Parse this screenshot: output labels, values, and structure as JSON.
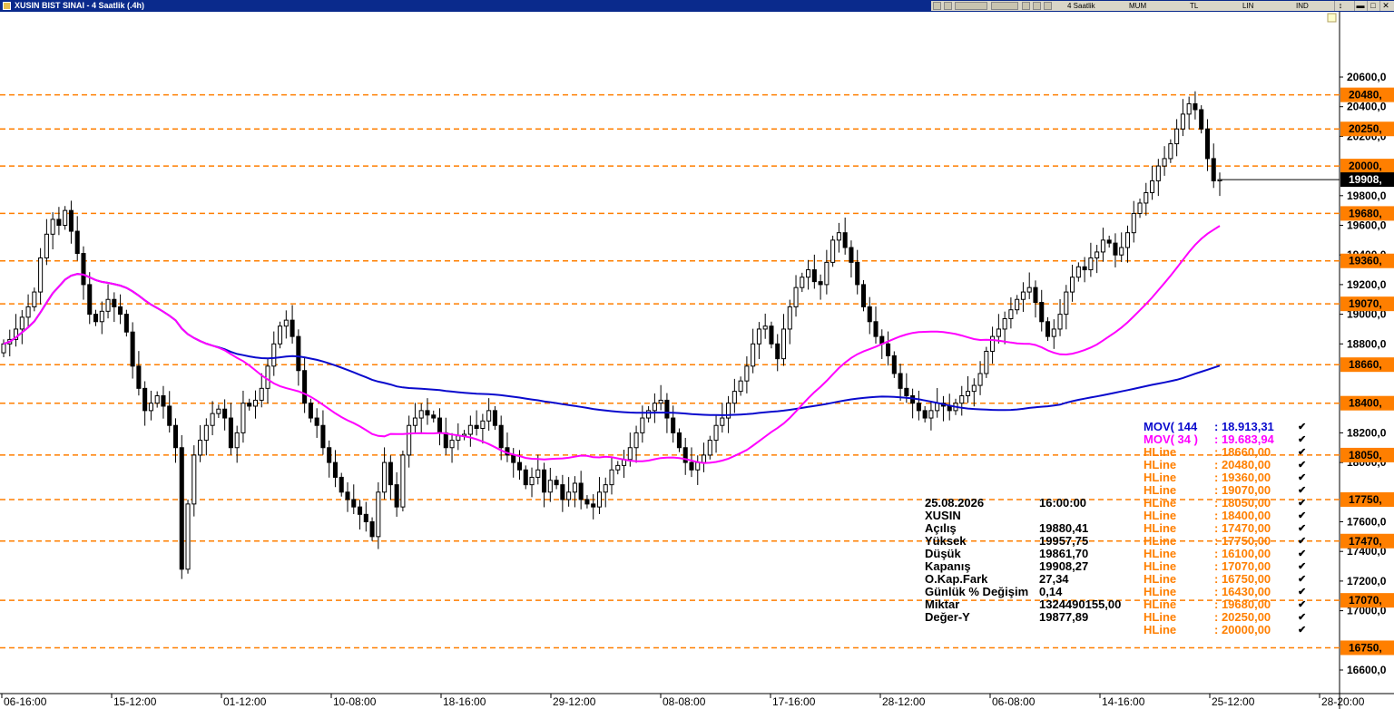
{
  "window": {
    "title": "XUSIN BIST SINAI - 4 Saatlik (.4h)",
    "toolbar": {
      "period": "4 Saatlik",
      "chart_type": "MUM",
      "currency": "TL",
      "scale": "LIN",
      "indicators": "IND"
    },
    "buttons": {
      "restore": "↕",
      "minimize": "▬",
      "maximize": "□",
      "close": "✕"
    },
    "icons": [
      "chart-icon",
      "copy-icon",
      "paste-icon",
      "layout-icon",
      "draw-icon",
      "pen-icon",
      "pencil-icon",
      "tools-icon",
      "dropdown-icon"
    ]
  },
  "colors": {
    "hline": "#ff7f00",
    "mov144": "#0a0acd",
    "mov34": "#ff00ff",
    "price_tag": "#000000",
    "bullish": "#ffffff",
    "bearish": "#000000"
  },
  "chart_data": {
    "type": "candlestick",
    "symbol": "XUSIN",
    "y_axis": {
      "min": 16600,
      "max": 20600,
      "ticks": [
        "20600,0",
        "20400,0",
        "20200,0",
        "19800,0",
        "19600,0",
        "19400,0",
        "19200,0",
        "19000,0",
        "18800,0",
        "18200,0",
        "18000,0",
        "17600,0",
        "17400,0",
        "17200,0",
        "17000,0",
        "16600,0"
      ]
    },
    "x_labels": [
      "06-16:00",
      "15-12:00",
      "01-12:00",
      "10-08:00",
      "18-16:00",
      "29-12:00",
      "08-08:00",
      "17-16:00",
      "28-12:00",
      "06-08:00",
      "14-16:00",
      "25-12:00",
      "28-20:00"
    ],
    "last_price": 19908.27,
    "last_price_label": "19908,",
    "hlines": [
      {
        "value": 20480,
        "label": "20480,"
      },
      {
        "value": 20250,
        "label": "20250,"
      },
      {
        "value": 20000,
        "label": "20000,"
      },
      {
        "value": 19680,
        "label": "19680,"
      },
      {
        "value": 19360,
        "label": "19360,"
      },
      {
        "value": 19070,
        "label": "19070,"
      },
      {
        "value": 18660,
        "label": "18660,"
      },
      {
        "value": 18400,
        "label": "18400,"
      },
      {
        "value": 18050,
        "label": "18050,"
      },
      {
        "value": 17750,
        "label": "17750,"
      },
      {
        "value": 17470,
        "label": "17470,"
      },
      {
        "value": 17070,
        "label": "17070,"
      },
      {
        "value": 16750,
        "label": "16750,"
      }
    ],
    "close": [
      18800,
      18830,
      18900,
      18980,
      19050,
      19150,
      19380,
      19540,
      19640,
      19600,
      19700,
      19560,
      19410,
      19200,
      19000,
      18950,
      19020,
      19100,
      19050,
      19000,
      18880,
      18650,
      18500,
      18350,
      18400,
      18450,
      18380,
      18250,
      18100,
      17280,
      17720,
      18050,
      18150,
      18250,
      18330,
      18360,
      18300,
      18100,
      18200,
      18400,
      18380,
      18420,
      18500,
      18650,
      18800,
      18920,
      18960,
      18850,
      18620,
      18400,
      18300,
      18250,
      18100,
      18000,
      17900,
      17800,
      17750,
      17700,
      17650,
      17600,
      17500,
      17800,
      18000,
      17850,
      17700,
      18050,
      18250,
      18300,
      18350,
      18320,
      18300,
      18200,
      18100,
      18150,
      18180,
      18190,
      18250,
      18230,
      18280,
      18350,
      18250,
      18100,
      18050,
      18000,
      17950,
      17850,
      17900,
      17950,
      17800,
      17880,
      17850,
      17750,
      17800,
      17860,
      17750,
      17720,
      17700,
      17800,
      17850,
      17950,
      17980,
      18020,
      18100,
      18200,
      18300,
      18350,
      18400,
      18420,
      18300,
      18200,
      18100,
      18000,
      17950,
      18000,
      18050,
      18150,
      18250,
      18300,
      18400,
      18480,
      18550,
      18650,
      18800,
      18900,
      18920,
      18800,
      18700,
      18900,
      19050,
      19180,
      19250,
      19300,
      19220,
      19200,
      19350,
      19500,
      19550,
      19450,
      19350,
      19200,
      19050,
      18950,
      18850,
      18800,
      18720,
      18600,
      18500,
      18450,
      18400,
      18350,
      18300,
      18350,
      18400,
      18380,
      18350,
      18400,
      18450,
      18480,
      18520,
      18600,
      18750,
      18850,
      18900,
      18970,
      19030,
      19100,
      19150,
      19180,
      19080,
      18950,
      18850,
      18900,
      19000,
      19150,
      19250,
      19320,
      19300,
      19380,
      19420,
      19500,
      19480,
      19400,
      19450,
      19550,
      19680,
      19750,
      19820,
      19900,
      20000,
      20050,
      20150,
      20250,
      20350,
      20420,
      20380,
      20250,
      20050,
      19900,
      19908
    ]
  },
  "indicators": [
    {
      "name": "MOV( 144 ",
      "value": ": 18.913,31",
      "color": "#0a0acd"
    },
    {
      "name": "MOV( 34 )",
      "value": ": 19.683,94",
      "color": "#ff00ff"
    },
    {
      "name": "HLine",
      "value": ": 18660,00",
      "color": "#ff7f00"
    },
    {
      "name": "HLine",
      "value": ": 20480,00",
      "color": "#ff7f00"
    },
    {
      "name": "HLine",
      "value": ": 19360,00",
      "color": "#ff7f00"
    },
    {
      "name": "HLine",
      "value": ": 19070,00",
      "color": "#ff7f00"
    },
    {
      "name": "HLine",
      "value": ": 18050,00",
      "color": "#ff7f00"
    },
    {
      "name": "HLine",
      "value": ": 18400,00",
      "color": "#ff7f00"
    },
    {
      "name": "HLine",
      "value": ": 17470,00",
      "color": "#ff7f00"
    },
    {
      "name": "HLine",
      "value": ": 17750,00",
      "color": "#ff7f00"
    },
    {
      "name": "HLine",
      "value": ": 16100,00",
      "color": "#ff7f00"
    },
    {
      "name": "HLine",
      "value": ": 17070,00",
      "color": "#ff7f00"
    },
    {
      "name": "HLine",
      "value": ": 16750,00",
      "color": "#ff7f00"
    },
    {
      "name": "HLine",
      "value": ": 16430,00",
      "color": "#ff7f00"
    },
    {
      "name": "HLine",
      "value": ": 19680,00",
      "color": "#ff7f00"
    },
    {
      "name": "HLine",
      "value": ": 20250,00",
      "color": "#ff7f00"
    },
    {
      "name": "HLine",
      "value": ": 20000,00",
      "color": "#ff7f00"
    }
  ],
  "info": {
    "date": "25.08.2026",
    "time": "16:00:00",
    "symbol": "XUSIN",
    "rows": [
      {
        "label": "Açılış",
        "value": "19880,41"
      },
      {
        "label": "Yüksek",
        "value": "19957,75"
      },
      {
        "label": "Düşük",
        "value": "19861,70"
      },
      {
        "label": "Kapanış",
        "value": "19908,27"
      },
      {
        "label": "O.Kap.Fark",
        "value": "27,34"
      },
      {
        "label": "Günlük % Değişim",
        "value": "0,14"
      },
      {
        "label": "Miktar",
        "value": "1324490155,00"
      },
      {
        "label": "Değer-Y",
        "value": "19877,89"
      }
    ]
  }
}
